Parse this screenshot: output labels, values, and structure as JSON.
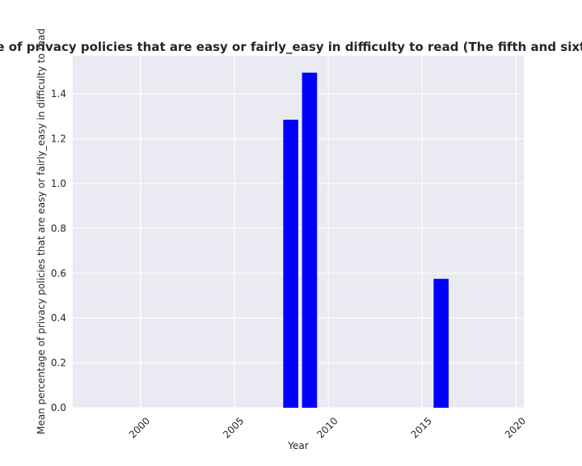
{
  "chart_data": {
    "type": "bar",
    "title": "Mean percentage of privacy policies that are easy or fairly_easy in difficulty to read (The fifth and sixth (lowest) level)",
    "xlabel": "Year",
    "ylabel": "Mean percentage of privacy policies that are easy or fairly_easy in difficulty to read",
    "x": [
      2008,
      2009,
      2016
    ],
    "values": [
      1.285,
      1.495,
      0.575
    ],
    "bar_color": "#0000ff",
    "background": "#eaeaf2",
    "grid": true,
    "xlim": [
      1996.4,
      2020.4
    ],
    "ylim": [
      0,
      1.57
    ],
    "xticks": [
      2000,
      2005,
      2010,
      2015,
      2020
    ],
    "xtick_labels": [
      "2000",
      "2005",
      "2010",
      "2015",
      "2020"
    ],
    "yticks": [
      0.0,
      0.2,
      0.4,
      0.6,
      0.8,
      1.0,
      1.2,
      1.4
    ],
    "ytick_labels": [
      "0.0",
      "0.2",
      "0.4",
      "0.6",
      "0.8",
      "1.0",
      "1.2",
      "1.4"
    ]
  }
}
